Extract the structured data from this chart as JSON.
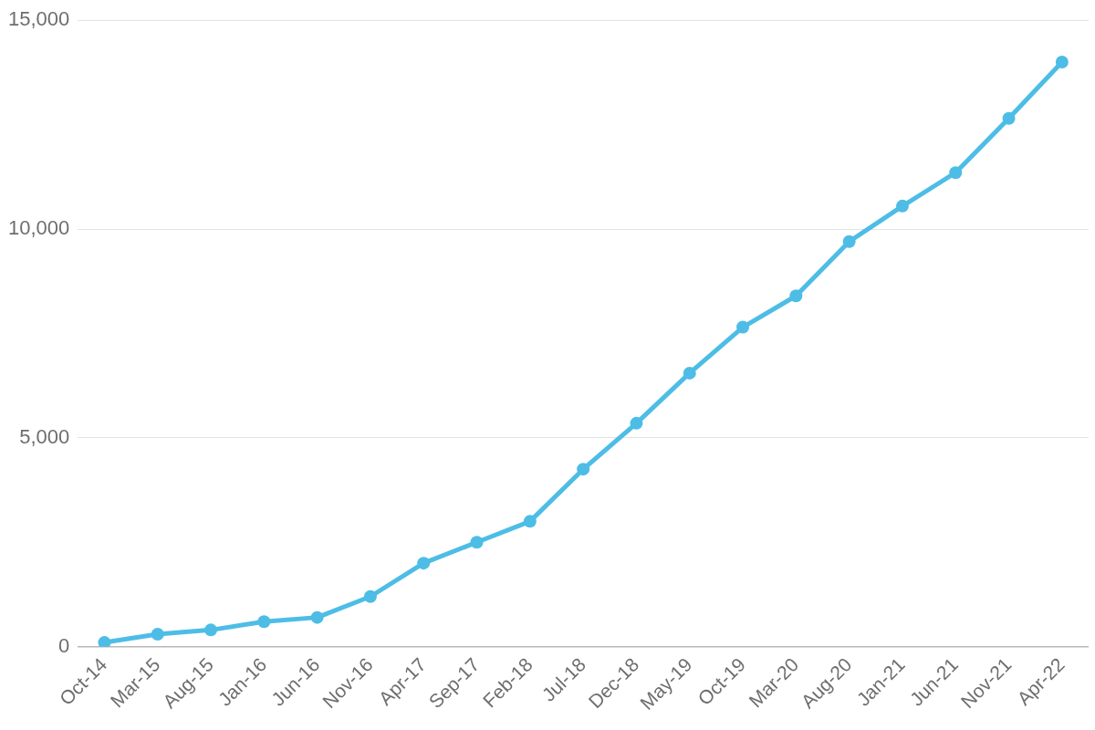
{
  "chart_data": {
    "type": "line",
    "categories": [
      "Oct-14",
      "Mar-15",
      "Aug-15",
      "Jan-16",
      "Jun-16",
      "Nov-16",
      "Apr-17",
      "Sep-17",
      "Feb-18",
      "Jul-18",
      "Dec-18",
      "May-19",
      "Oct-19",
      "Mar-20",
      "Aug-20",
      "Jan-21",
      "Jun-21",
      "Nov-21",
      "Apr-22"
    ],
    "series": [
      {
        "color": "#4dbde6",
        "values": [
          100,
          300,
          400,
          600,
          700,
          1200,
          2000,
          2500,
          3000,
          4250,
          5350,
          6550,
          7650,
          8400,
          9700,
          10550,
          11350,
          12650,
          14000
        ]
      }
    ],
    "ylim": [
      0,
      15000
    ],
    "yticks": [
      0,
      {
        "value": 5000,
        "label": "5,000"
      },
      {
        "value": 10000,
        "label": "10,000"
      },
      {
        "value": 15000,
        "label": "15,000"
      }
    ],
    "grid": "y",
    "marker": "circle",
    "line_style": "solid"
  }
}
